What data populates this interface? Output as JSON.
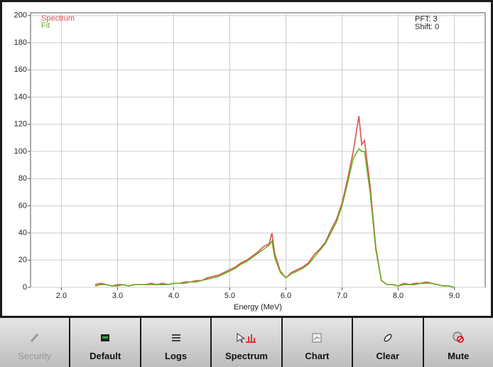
{
  "chart_data": {
    "type": "line",
    "x_label": "Energy (MeV)",
    "annotations": [
      "PFT: 3",
      "Shift: 0"
    ],
    "x": [
      2.6,
      2.7,
      2.8,
      2.9,
      3.0,
      3.1,
      3.2,
      3.3,
      3.4,
      3.5,
      3.6,
      3.7,
      3.8,
      3.9,
      4.0,
      4.1,
      4.2,
      4.3,
      4.4,
      4.5,
      4.6,
      4.7,
      4.8,
      4.9,
      5.0,
      5.1,
      5.2,
      5.3,
      5.4,
      5.5,
      5.6,
      5.7,
      5.75,
      5.8,
      5.9,
      6.0,
      6.1,
      6.2,
      6.3,
      6.4,
      6.5,
      6.6,
      6.7,
      6.8,
      6.9,
      7.0,
      7.1,
      7.2,
      7.3,
      7.35,
      7.4,
      7.5,
      7.6,
      7.7,
      7.8,
      7.9,
      8.0,
      8.1,
      8.2,
      8.3,
      8.4,
      8.5,
      8.6,
      8.7,
      8.8,
      8.9,
      9.0
    ],
    "series": [
      {
        "name": "Spectrum",
        "color": "#d9534f",
        "values": [
          2,
          3,
          2,
          1,
          2,
          2,
          1,
          2,
          2,
          2,
          3,
          2,
          3,
          2,
          3,
          3,
          4,
          4,
          5,
          5,
          7,
          8,
          9,
          11,
          13,
          15,
          18,
          20,
          23,
          26,
          30,
          32,
          40,
          25,
          12,
          7,
          11,
          13,
          15,
          18,
          24,
          28,
          33,
          42,
          50,
          62,
          80,
          100,
          126,
          105,
          108,
          75,
          30,
          5,
          2,
          2,
          1,
          3,
          2,
          3,
          3,
          4,
          3,
          2,
          1,
          1,
          0
        ]
      },
      {
        "name": "Fit",
        "color": "#6ab023",
        "values": [
          1,
          2,
          2,
          1,
          1,
          2,
          1,
          2,
          2,
          2,
          2,
          2,
          2,
          2,
          3,
          3,
          3,
          4,
          4,
          5,
          6,
          7,
          8,
          10,
          12,
          14,
          17,
          19,
          22,
          25,
          28,
          31,
          34,
          22,
          11,
          7,
          10,
          12,
          14,
          17,
          22,
          27,
          32,
          40,
          48,
          60,
          77,
          95,
          102,
          100,
          100,
          70,
          28,
          5,
          2,
          2,
          1,
          2,
          2,
          2,
          3,
          3,
          3,
          2,
          1,
          1,
          0
        ]
      }
    ],
    "xlim": [
      1.45,
      9.55
    ],
    "ylim": [
      0,
      202
    ],
    "xticks": [
      {
        "value": 2,
        "label": "2.0"
      },
      {
        "value": 3,
        "label": "3.0"
      },
      {
        "value": 4,
        "label": "4.0"
      },
      {
        "value": 5,
        "label": "5.0"
      },
      {
        "value": 6,
        "label": "6.0"
      },
      {
        "value": 7,
        "label": "7.0"
      },
      {
        "value": 8,
        "label": "8.0"
      },
      {
        "value": 9,
        "label": "9.0"
      }
    ],
    "yticks": [
      0,
      20,
      40,
      60,
      80,
      100,
      120,
      140,
      160,
      180,
      200
    ],
    "grid": true,
    "legend": "top-left"
  },
  "toolbar": {
    "buttons": [
      "Security",
      "Default",
      "Logs",
      "Spectrum",
      "Chart",
      "Clear",
      "Mute"
    ]
  }
}
